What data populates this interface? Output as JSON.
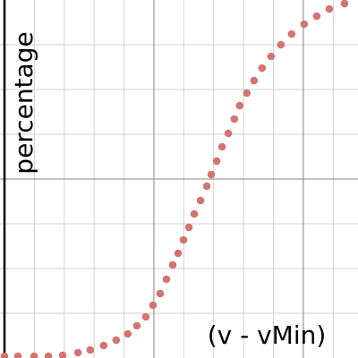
{
  "chart_data": {
    "type": "scatter",
    "x_label": "(v - vMin)",
    "y_label": "percentage",
    "xlim": [
      -0.15,
      11.83
    ],
    "ylim": [
      0,
      8
    ],
    "xticks": [
      1,
      2,
      3,
      4,
      5,
      6,
      7,
      8,
      9,
      10,
      11
    ],
    "yticks": [
      1,
      2,
      3,
      4,
      5,
      6,
      7
    ],
    "xmajor": [
      5,
      10
    ],
    "ymajor": [
      4
    ],
    "grid": true,
    "color": "#d47472",
    "x": [
      0,
      0.45,
      0.99,
      1.47,
      1.95,
      2.46,
      2.87,
      3.32,
      3.74,
      4.13,
      4.43,
      4.73,
      4.97,
      5.21,
      5.42,
      5.63,
      5.81,
      5.99,
      6.17,
      6.35,
      6.56,
      6.77,
      6.92,
      7.1,
      7.28,
      7.49,
      7.69,
      7.87,
      8.11,
      8.35,
      8.62,
      8.92,
      9.25,
      9.61,
      10.03,
      10.45,
      10.87,
      11.38
    ],
    "values": [
      0.04,
      0.04,
      0.04,
      0.04,
      0.06,
      0.12,
      0.18,
      0.28,
      0.4,
      0.54,
      0.72,
      0.92,
      1.18,
      1.44,
      1.76,
      2.08,
      2.34,
      2.64,
      2.92,
      3.22,
      3.52,
      3.84,
      4.1,
      4.4,
      4.72,
      5.02,
      5.34,
      5.64,
      5.92,
      6.2,
      6.48,
      6.74,
      7,
      7.24,
      7.46,
      7.64,
      7.8,
      7.92
    ]
  }
}
